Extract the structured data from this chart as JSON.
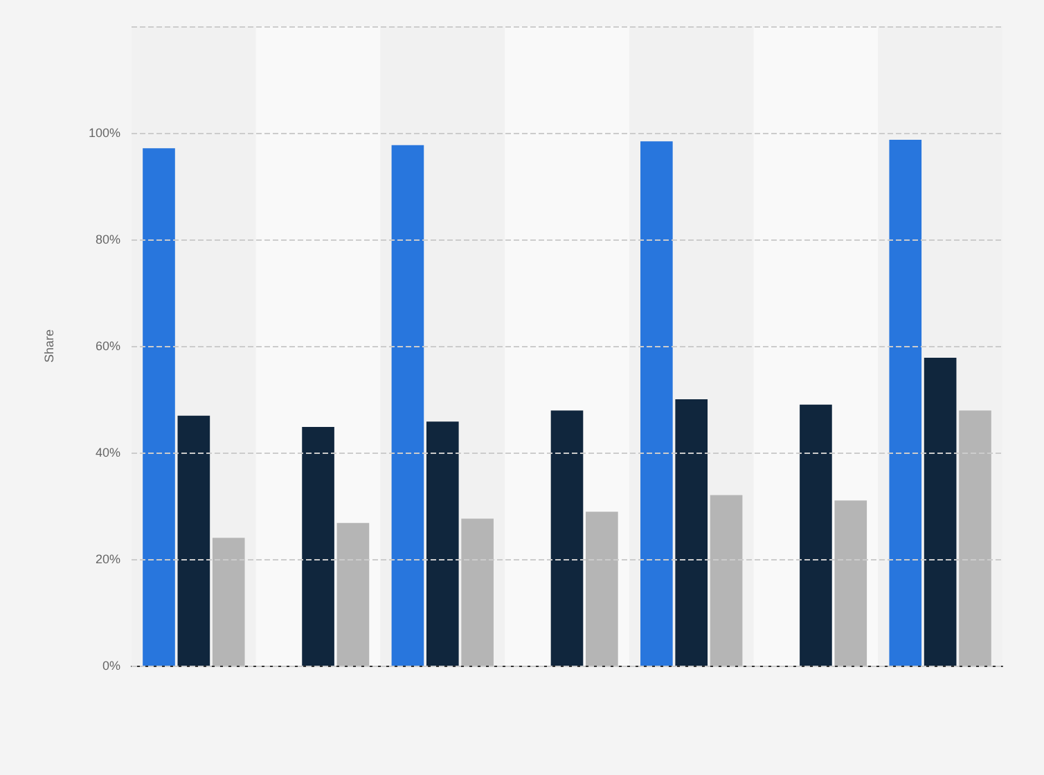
{
  "chart_data": {
    "type": "bar",
    "ylabel": "Share",
    "categories": [
      null,
      null,
      null,
      null,
      null,
      null,
      null
    ],
    "series": [
      {
        "color": "#2876dd",
        "values": [
          97.1,
          null,
          97.7,
          null,
          98.4,
          null,
          98.7
        ]
      },
      {
        "color": "#10263d",
        "values": [
          46.9,
          44.8,
          45.8,
          47.9,
          50,
          49,
          57.8
        ]
      },
      {
        "color": "#b5b5b5",
        "values": [
          24,
          26.8,
          27.6,
          28.9,
          32,
          31,
          47.9
        ]
      }
    ],
    "ylim": [
      0,
      120
    ],
    "yticks": [
      {
        "value": 0,
        "label": "0%"
      },
      {
        "value": 20,
        "label": "20%"
      },
      {
        "value": 40,
        "label": "40%"
      },
      {
        "value": 60,
        "label": "60%"
      },
      {
        "value": 80,
        "label": "80%"
      },
      {
        "value": 100,
        "label": "100%"
      },
      {
        "value": 120,
        "label": null
      }
    ],
    "grid": "y",
    "tick_labels": "y"
  }
}
